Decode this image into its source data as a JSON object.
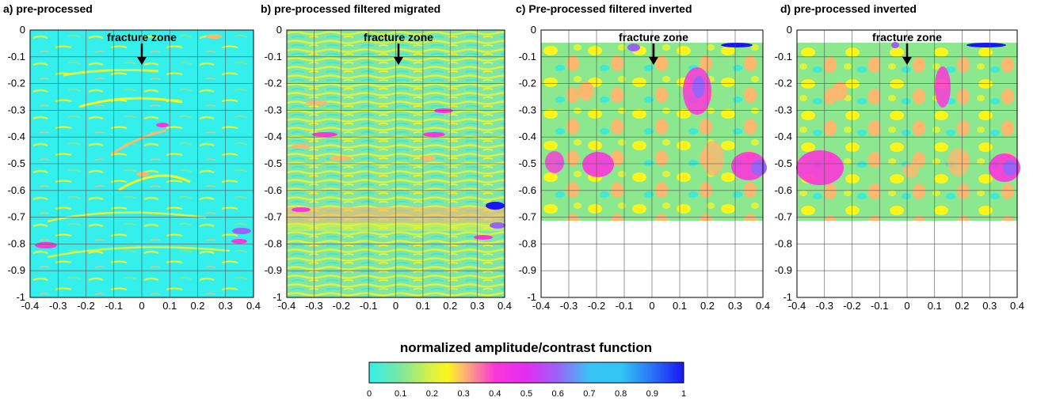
{
  "chart_data": [
    {
      "type": "heatmap",
      "title": "a) pre-processed",
      "xlim": [
        -0.4,
        0.4
      ],
      "ylim": [
        -1,
        0
      ],
      "data_ylim": [
        -1,
        0
      ],
      "xticks": [
        "-0.4",
        "-0.3",
        "-0.2",
        "-0.1",
        "0",
        "0.1",
        "0.2",
        "0.3",
        "0.4"
      ],
      "yticks": [
        "0",
        "-0.1",
        "-0.2",
        "-0.3",
        "-0.4",
        "-0.5",
        "-0.6",
        "-0.7",
        "-0.8",
        "-0.9",
        "-1"
      ],
      "grid": true,
      "annotation": {
        "text": "fracture zone",
        "x": 0,
        "y_text": -0.03,
        "arrow_to_y": -0.13
      }
    },
    {
      "type": "heatmap",
      "title": "b) pre-processed filtered migrated",
      "xlim": [
        -0.4,
        0.4
      ],
      "ylim": [
        -1,
        0
      ],
      "data_ylim": [
        -1,
        0
      ],
      "xticks": [
        "-0.4",
        "-0.3",
        "-0.2",
        "-0.1",
        "0",
        "0.1",
        "0.2",
        "0.3",
        "0.4"
      ],
      "yticks": [
        "0",
        "-0.1",
        "-0.2",
        "-0.3",
        "-0.4",
        "-0.5",
        "-0.6",
        "-0.7",
        "-0.8",
        "-0.9",
        "-1"
      ],
      "grid": true,
      "annotation": {
        "text": "fracture zone",
        "x": 0,
        "y_text": -0.03,
        "arrow_to_y": -0.13
      }
    },
    {
      "type": "heatmap",
      "title": "c) Pre-processed filtered inverted",
      "xlim": [
        -0.4,
        0.4
      ],
      "ylim": [
        -1,
        0
      ],
      "data_ylim": [
        -0.7,
        -0.05
      ],
      "xticks": [
        "-0.4",
        "-0.3",
        "-0.2",
        "-0.1",
        "0",
        "0.1",
        "0.2",
        "0.3",
        "0.4"
      ],
      "yticks": [
        "0",
        "-0.1",
        "-0.2",
        "-0.3",
        "-0.4",
        "-0.5",
        "-0.6",
        "-0.7",
        "-0.8",
        "-0.9",
        "-1"
      ],
      "grid": true,
      "annotation": {
        "text": "fracture zone",
        "x": 0,
        "y_text": -0.03,
        "arrow_to_y": -0.13
      }
    },
    {
      "type": "heatmap",
      "title": "d) pre-processed inverted",
      "xlim": [
        -0.4,
        0.4
      ],
      "ylim": [
        -1,
        0
      ],
      "data_ylim": [
        -0.7,
        -0.05
      ],
      "xticks": [
        "-0.4",
        "-0.3",
        "-0.2",
        "-0.1",
        "0",
        "0.1",
        "0.2",
        "0.3",
        "0.4"
      ],
      "yticks": [
        "0",
        "-0.1",
        "-0.2",
        "-0.3",
        "-0.4",
        "-0.5",
        "-0.6",
        "-0.7",
        "-0.8",
        "-0.9",
        "-1"
      ],
      "grid": true,
      "annotation": {
        "text": "fracture zone",
        "x": 0,
        "y_text": -0.03,
        "arrow_to_y": -0.13
      }
    }
  ],
  "colorbar": {
    "title": "normalized amplitude/contrast function",
    "range": [
      0,
      1
    ],
    "ticks": [
      "0",
      "0.1",
      "0.2",
      "0.3",
      "0.4",
      "0.5",
      "0.6",
      "0.7",
      "0.8",
      "0.9",
      "1"
    ],
    "stops": [
      {
        "v": 0.0,
        "color": "#33f0ec"
      },
      {
        "v": 0.1,
        "color": "#7de79e"
      },
      {
        "v": 0.2,
        "color": "#dcf240"
      },
      {
        "v": 0.25,
        "color": "#fbf51c"
      },
      {
        "v": 0.3,
        "color": "#fbb86e"
      },
      {
        "v": 0.4,
        "color": "#fb36da"
      },
      {
        "v": 0.5,
        "color": "#e32df0"
      },
      {
        "v": 0.6,
        "color": "#9a63f7"
      },
      {
        "v": 0.7,
        "color": "#3ac3f6"
      },
      {
        "v": 0.8,
        "color": "#31c6f4"
      },
      {
        "v": 0.9,
        "color": "#2a73f5"
      },
      {
        "v": 1.0,
        "color": "#1a15f4"
      }
    ]
  }
}
